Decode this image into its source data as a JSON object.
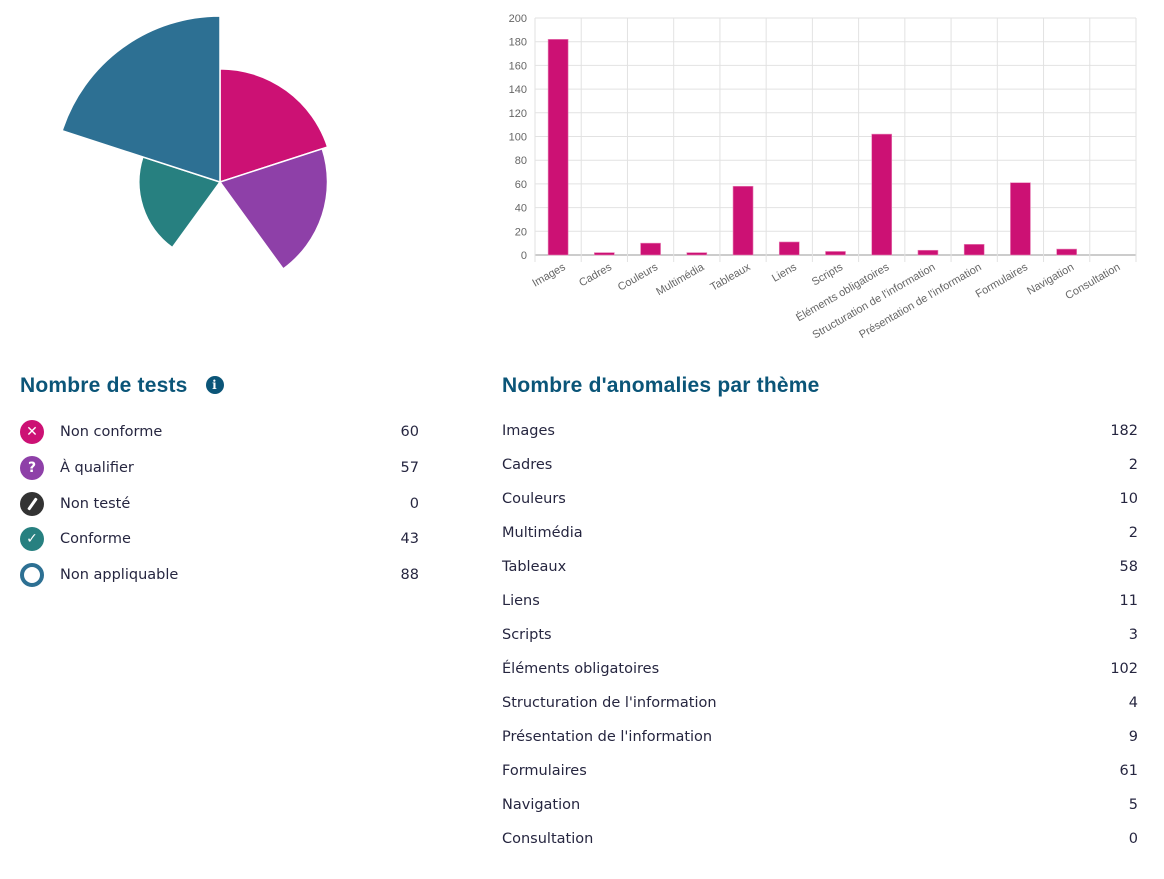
{
  "chart_data": [
    {
      "type": "polar-area",
      "categories": [
        "Non conforme",
        "À qualifier",
        "Non testé",
        "Conforme",
        "Non appliquable"
      ],
      "values": [
        60,
        57,
        0,
        43,
        88
      ],
      "colors": [
        "#cc1174",
        "#8e40a8",
        "#333333",
        "#278080",
        "#2d7093"
      ]
    },
    {
      "type": "bar",
      "categories": [
        "Images",
        "Cadres",
        "Couleurs",
        "Multimédia",
        "Tableaux",
        "Liens",
        "Scripts",
        "Éléments obligatoires",
        "Structuration de l'information",
        "Présentation de l'information",
        "Formulaires",
        "Navigation",
        "Consultation"
      ],
      "values": [
        182,
        2,
        10,
        2,
        58,
        11,
        3,
        102,
        4,
        9,
        61,
        5,
        0
      ],
      "ylim": [
        0,
        200
      ],
      "yticks": [
        "0",
        "20",
        "40",
        "60",
        "80",
        "100",
        "120",
        "140",
        "160",
        "180",
        "200"
      ],
      "grid": true,
      "color": "#cc1174"
    }
  ],
  "tests": {
    "title": "Nombre de tests",
    "info_icon": "info-icon",
    "items": [
      {
        "label": "Non conforme",
        "value": "60",
        "icon": "x",
        "color": "#cc1174"
      },
      {
        "label": "À qualifier",
        "value": "57",
        "icon": "?",
        "color": "#8e40a8"
      },
      {
        "label": "Non testé",
        "value": "0",
        "icon": "/",
        "color": "#333333"
      },
      {
        "label": "Conforme",
        "value": "43",
        "icon": "✓",
        "color": "#278080"
      },
      {
        "label": "Non appliquable",
        "value": "88",
        "icon": "o",
        "color": "#2d7093"
      }
    ]
  },
  "themes": {
    "title": "Nombre d'anomalies par thème",
    "items": [
      {
        "label": "Images",
        "value": "182"
      },
      {
        "label": "Cadres",
        "value": "2"
      },
      {
        "label": "Couleurs",
        "value": "10"
      },
      {
        "label": "Multimédia",
        "value": "2"
      },
      {
        "label": "Tableaux",
        "value": "58"
      },
      {
        "label": "Liens",
        "value": "11"
      },
      {
        "label": "Scripts",
        "value": "3"
      },
      {
        "label": "Éléments obligatoires",
        "value": "102"
      },
      {
        "label": "Structuration de l'information",
        "value": "4"
      },
      {
        "label": "Présentation de l'information",
        "value": "9"
      },
      {
        "label": "Formulaires",
        "value": "61"
      },
      {
        "label": "Navigation",
        "value": "5"
      },
      {
        "label": "Consultation",
        "value": "0"
      }
    ]
  }
}
